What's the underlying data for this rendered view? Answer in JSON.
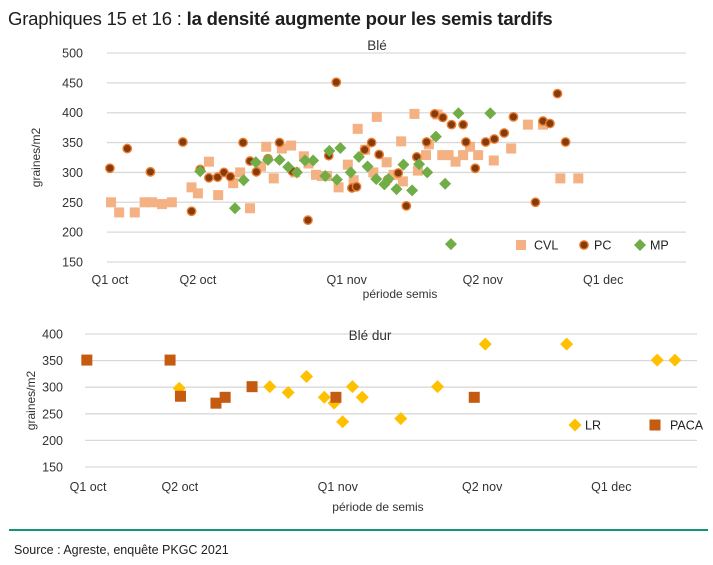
{
  "title": {
    "prefix": "Graphiques 15 et 16 : ",
    "bold": "la densité augmente pour les semis tardifs"
  },
  "source": "Source : Agreste, enquête PKGC 2021",
  "colors": {
    "CVL": "#f4b183",
    "PC": "#843c0c",
    "PC_edge": "#ed7d31",
    "MP": "#70ad47",
    "LR": "#ffc000",
    "PACA": "#c55a11",
    "rule": "#129476",
    "grid": "#d9d9d9"
  },
  "chart_data": [
    {
      "type": "scatter",
      "title": "Blé",
      "xlabel": "période semis",
      "ylabel": "graines/m2",
      "ylim": [
        150,
        500
      ],
      "yticks": [
        150,
        200,
        250,
        300,
        350,
        400,
        450,
        500
      ],
      "xlim": [
        0,
        100
      ],
      "xticks": [
        {
          "label": "Q1 oct",
          "x": 0.5
        },
        {
          "label": "Q2 oct",
          "x": 15.7
        },
        {
          "label": "Q1 nov",
          "x": 41.4
        },
        {
          "label": "Q2 nov",
          "x": 64.9
        },
        {
          "label": "Q1 dec",
          "x": 85.7
        }
      ],
      "grid": "horizontal",
      "legend": "bottom-right",
      "series": [
        {
          "name": "CVL",
          "marker": "square",
          "points": [
            [
              0.7,
              250
            ],
            [
              2.1,
              233
            ],
            [
              4.8,
              233
            ],
            [
              6.5,
              250
            ],
            [
              7.8,
              250
            ],
            [
              9.5,
              247
            ],
            [
              11.2,
              250
            ],
            [
              14.6,
              275
            ],
            [
              15.7,
              265
            ],
            [
              17.6,
              318
            ],
            [
              19.2,
              262
            ],
            [
              21.8,
              282
            ],
            [
              23.0,
              300
            ],
            [
              24.7,
              240
            ],
            [
              26.6,
              310
            ],
            [
              27.5,
              343
            ],
            [
              28.8,
              290
            ],
            [
              30.2,
              340
            ],
            [
              31.8,
              345
            ],
            [
              32.5,
              300
            ],
            [
              34.0,
              327
            ],
            [
              34.8,
              315
            ],
            [
              36.1,
              296
            ],
            [
              37.1,
              294
            ],
            [
              38.0,
              294
            ],
            [
              40.0,
              275
            ],
            [
              41.6,
              313
            ],
            [
              42.6,
              287
            ],
            [
              43.3,
              373
            ],
            [
              44.6,
              338
            ],
            [
              46.6,
              393
            ],
            [
              46.0,
              300
            ],
            [
              48.3,
              317
            ],
            [
              49.5,
              296
            ],
            [
              50.8,
              352
            ],
            [
              51.1,
              285
            ],
            [
              53.1,
              398
            ],
            [
              53.7,
              303
            ],
            [
              55.1,
              329
            ],
            [
              55.6,
              347
            ],
            [
              57.1,
              397
            ],
            [
              57.9,
              329
            ],
            [
              59.0,
              329
            ],
            [
              60.2,
              318
            ],
            [
              61.5,
              329
            ],
            [
              62.7,
              343
            ],
            [
              64.1,
              329
            ],
            [
              66.8,
              320
            ],
            [
              69.8,
              340
            ],
            [
              72.7,
              380
            ],
            [
              75.3,
              380
            ],
            [
              78.3,
              290
            ],
            [
              81.4,
              290
            ]
          ]
        },
        {
          "name": "PC",
          "marker": "circle",
          "points": [
            [
              0.5,
              307
            ],
            [
              3.5,
              340
            ],
            [
              7.5,
              301
            ],
            [
              13.1,
              351
            ],
            [
              14.6,
              235
            ],
            [
              16.1,
              305
            ],
            [
              17.6,
              291
            ],
            [
              19.1,
              292
            ],
            [
              20.2,
              300
            ],
            [
              21.3,
              293
            ],
            [
              23.5,
              350
            ],
            [
              24.7,
              319
            ],
            [
              25.8,
              301
            ],
            [
              27.8,
              323
            ],
            [
              29.8,
              350
            ],
            [
              32.0,
              302
            ],
            [
              34.7,
              220
            ],
            [
              38.3,
              328
            ],
            [
              39.6,
              451
            ],
            [
              42.3,
              274
            ],
            [
              43.1,
              276
            ],
            [
              44.5,
              338
            ],
            [
              45.7,
              350
            ],
            [
              47.0,
              330
            ],
            [
              48.5,
              288
            ],
            [
              50.3,
              299
            ],
            [
              51.7,
              244
            ],
            [
              53.5,
              326
            ],
            [
              55.2,
              351
            ],
            [
              56.6,
              398
            ],
            [
              58.0,
              392
            ],
            [
              59.5,
              380
            ],
            [
              61.5,
              380
            ],
            [
              62.0,
              351
            ],
            [
              63.6,
              307
            ],
            [
              65.4,
              351
            ],
            [
              66.9,
              356
            ],
            [
              68.6,
              366
            ],
            [
              70.2,
              393
            ],
            [
              74.0,
              250
            ],
            [
              75.3,
              386
            ],
            [
              76.5,
              382
            ],
            [
              77.8,
              432
            ],
            [
              79.2,
              351
            ]
          ]
        },
        {
          "name": "MP",
          "marker": "diamond",
          "points": [
            [
              16.1,
              302
            ],
            [
              22.1,
              240
            ],
            [
              23.6,
              287
            ],
            [
              25.7,
              317
            ],
            [
              27.8,
              321
            ],
            [
              29.8,
              321
            ],
            [
              31.3,
              309
            ],
            [
              32.8,
              300
            ],
            [
              34.2,
              320
            ],
            [
              35.6,
              320
            ],
            [
              37.7,
              294
            ],
            [
              38.4,
              336
            ],
            [
              39.7,
              288
            ],
            [
              40.3,
              341
            ],
            [
              42.1,
              300
            ],
            [
              43.5,
              326
            ],
            [
              45.0,
              310
            ],
            [
              46.5,
              289
            ],
            [
              47.9,
              280
            ],
            [
              48.6,
              289
            ],
            [
              50.0,
              272
            ],
            [
              51.2,
              313
            ],
            [
              52.7,
              270
            ],
            [
              53.9,
              314
            ],
            [
              55.3,
              300
            ],
            [
              56.8,
              360
            ],
            [
              58.4,
              281
            ],
            [
              60.7,
              399
            ],
            [
              66.2,
              399
            ],
            [
              59.4,
              180
            ]
          ]
        }
      ]
    },
    {
      "type": "scatter",
      "title": "Blé dur",
      "xlabel": "période de semis",
      "ylabel": "graines/m2",
      "ylim": [
        150,
        400
      ],
      "yticks": [
        150,
        200,
        250,
        300,
        350,
        400
      ],
      "xlim": [
        0,
        100
      ],
      "xticks": [
        {
          "label": "Q1 oct",
          "x": 0.5
        },
        {
          "label": "Q2 oct",
          "x": 15.5
        },
        {
          "label": "Q1 nov",
          "x": 41.3
        },
        {
          "label": "Q2 nov",
          "x": 64.9
        },
        {
          "label": "Q1 dec",
          "x": 86.0
        }
      ],
      "grid": "horizontal",
      "legend": "bottom-right",
      "series": [
        {
          "name": "LR",
          "marker": "diamond",
          "points": [
            [
              15.4,
              298
            ],
            [
              30.2,
              301
            ],
            [
              33.2,
              290
            ],
            [
              36.2,
              320
            ],
            [
              39.1,
              281
            ],
            [
              40.7,
              270
            ],
            [
              42.1,
              235
            ],
            [
              43.7,
              301
            ],
            [
              45.3,
              281
            ],
            [
              51.6,
              241
            ],
            [
              57.6,
              301
            ],
            [
              65.4,
              381
            ],
            [
              78.7,
              381
            ],
            [
              93.5,
              351
            ],
            [
              96.4,
              351
            ]
          ]
        },
        {
          "name": "PACA",
          "marker": "square",
          "points": [
            [
              0.3,
              351
            ],
            [
              13.9,
              351
            ],
            [
              15.6,
              283
            ],
            [
              21.4,
              270
            ],
            [
              22.9,
              281
            ],
            [
              27.3,
              301
            ],
            [
              41.0,
              281
            ],
            [
              63.6,
              281
            ]
          ]
        }
      ]
    }
  ]
}
